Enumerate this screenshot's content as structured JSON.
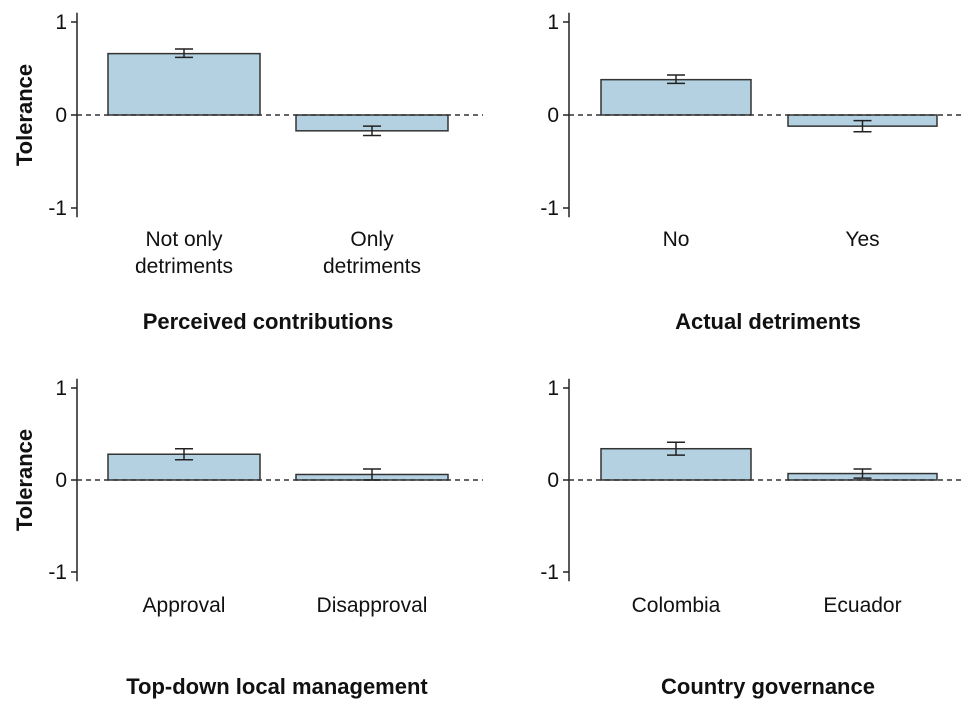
{
  "chart_data": [
    {
      "type": "bar",
      "ylabel": "Tolerance",
      "xlabel": "Perceived contributions",
      "categories": [
        [
          "Not only",
          "detriments"
        ],
        [
          "Only",
          "detriments"
        ]
      ],
      "values": [
        0.66,
        -0.17
      ],
      "error_low": [
        0.62,
        -0.22
      ],
      "error_high": [
        0.71,
        -0.12
      ],
      "ylim": [
        -1.1,
        1.1
      ],
      "yticks": [
        1,
        0,
        -1
      ],
      "ytick_labels": [
        "1",
        "0",
        "-1"
      ],
      "reference_line": 0,
      "bar_color": "#b3d1e1"
    },
    {
      "type": "bar",
      "ylabel": "",
      "xlabel": "Actual detriments",
      "categories": [
        [
          "No"
        ],
        [
          "Yes"
        ]
      ],
      "values": [
        0.38,
        -0.12
      ],
      "error_low": [
        0.34,
        -0.18
      ],
      "error_high": [
        0.43,
        -0.06
      ],
      "ylim": [
        -1.1,
        1.1
      ],
      "yticks": [
        1,
        0,
        -1
      ],
      "ytick_labels": [
        "1",
        "0",
        "-1"
      ],
      "reference_line": 0,
      "bar_color": "#b3d1e1"
    },
    {
      "type": "bar",
      "ylabel": "Tolerance",
      "xlabel": "Top-down local management",
      "categories": [
        [
          "Approval"
        ],
        [
          "Disapproval"
        ]
      ],
      "values": [
        0.28,
        0.06
      ],
      "error_low": [
        0.22,
        0.0
      ],
      "error_high": [
        0.34,
        0.12
      ],
      "ylim": [
        -1.1,
        1.1
      ],
      "yticks": [
        1,
        0,
        -1
      ],
      "ytick_labels": [
        "1",
        "0",
        "-1"
      ],
      "reference_line": 0,
      "bar_color": "#b3d1e1"
    },
    {
      "type": "bar",
      "ylabel": "",
      "xlabel": "Country governance",
      "categories": [
        [
          "Colombia"
        ],
        [
          "Ecuador"
        ]
      ],
      "values": [
        0.34,
        0.07
      ],
      "error_low": [
        0.27,
        0.02
      ],
      "error_high": [
        0.41,
        0.12
      ],
      "ylim": [
        -1.1,
        1.1
      ],
      "yticks": [
        1,
        0,
        -1
      ],
      "ytick_labels": [
        "1",
        "0",
        "-1"
      ],
      "reference_line": 0,
      "bar_color": "#b3d1e1"
    }
  ]
}
